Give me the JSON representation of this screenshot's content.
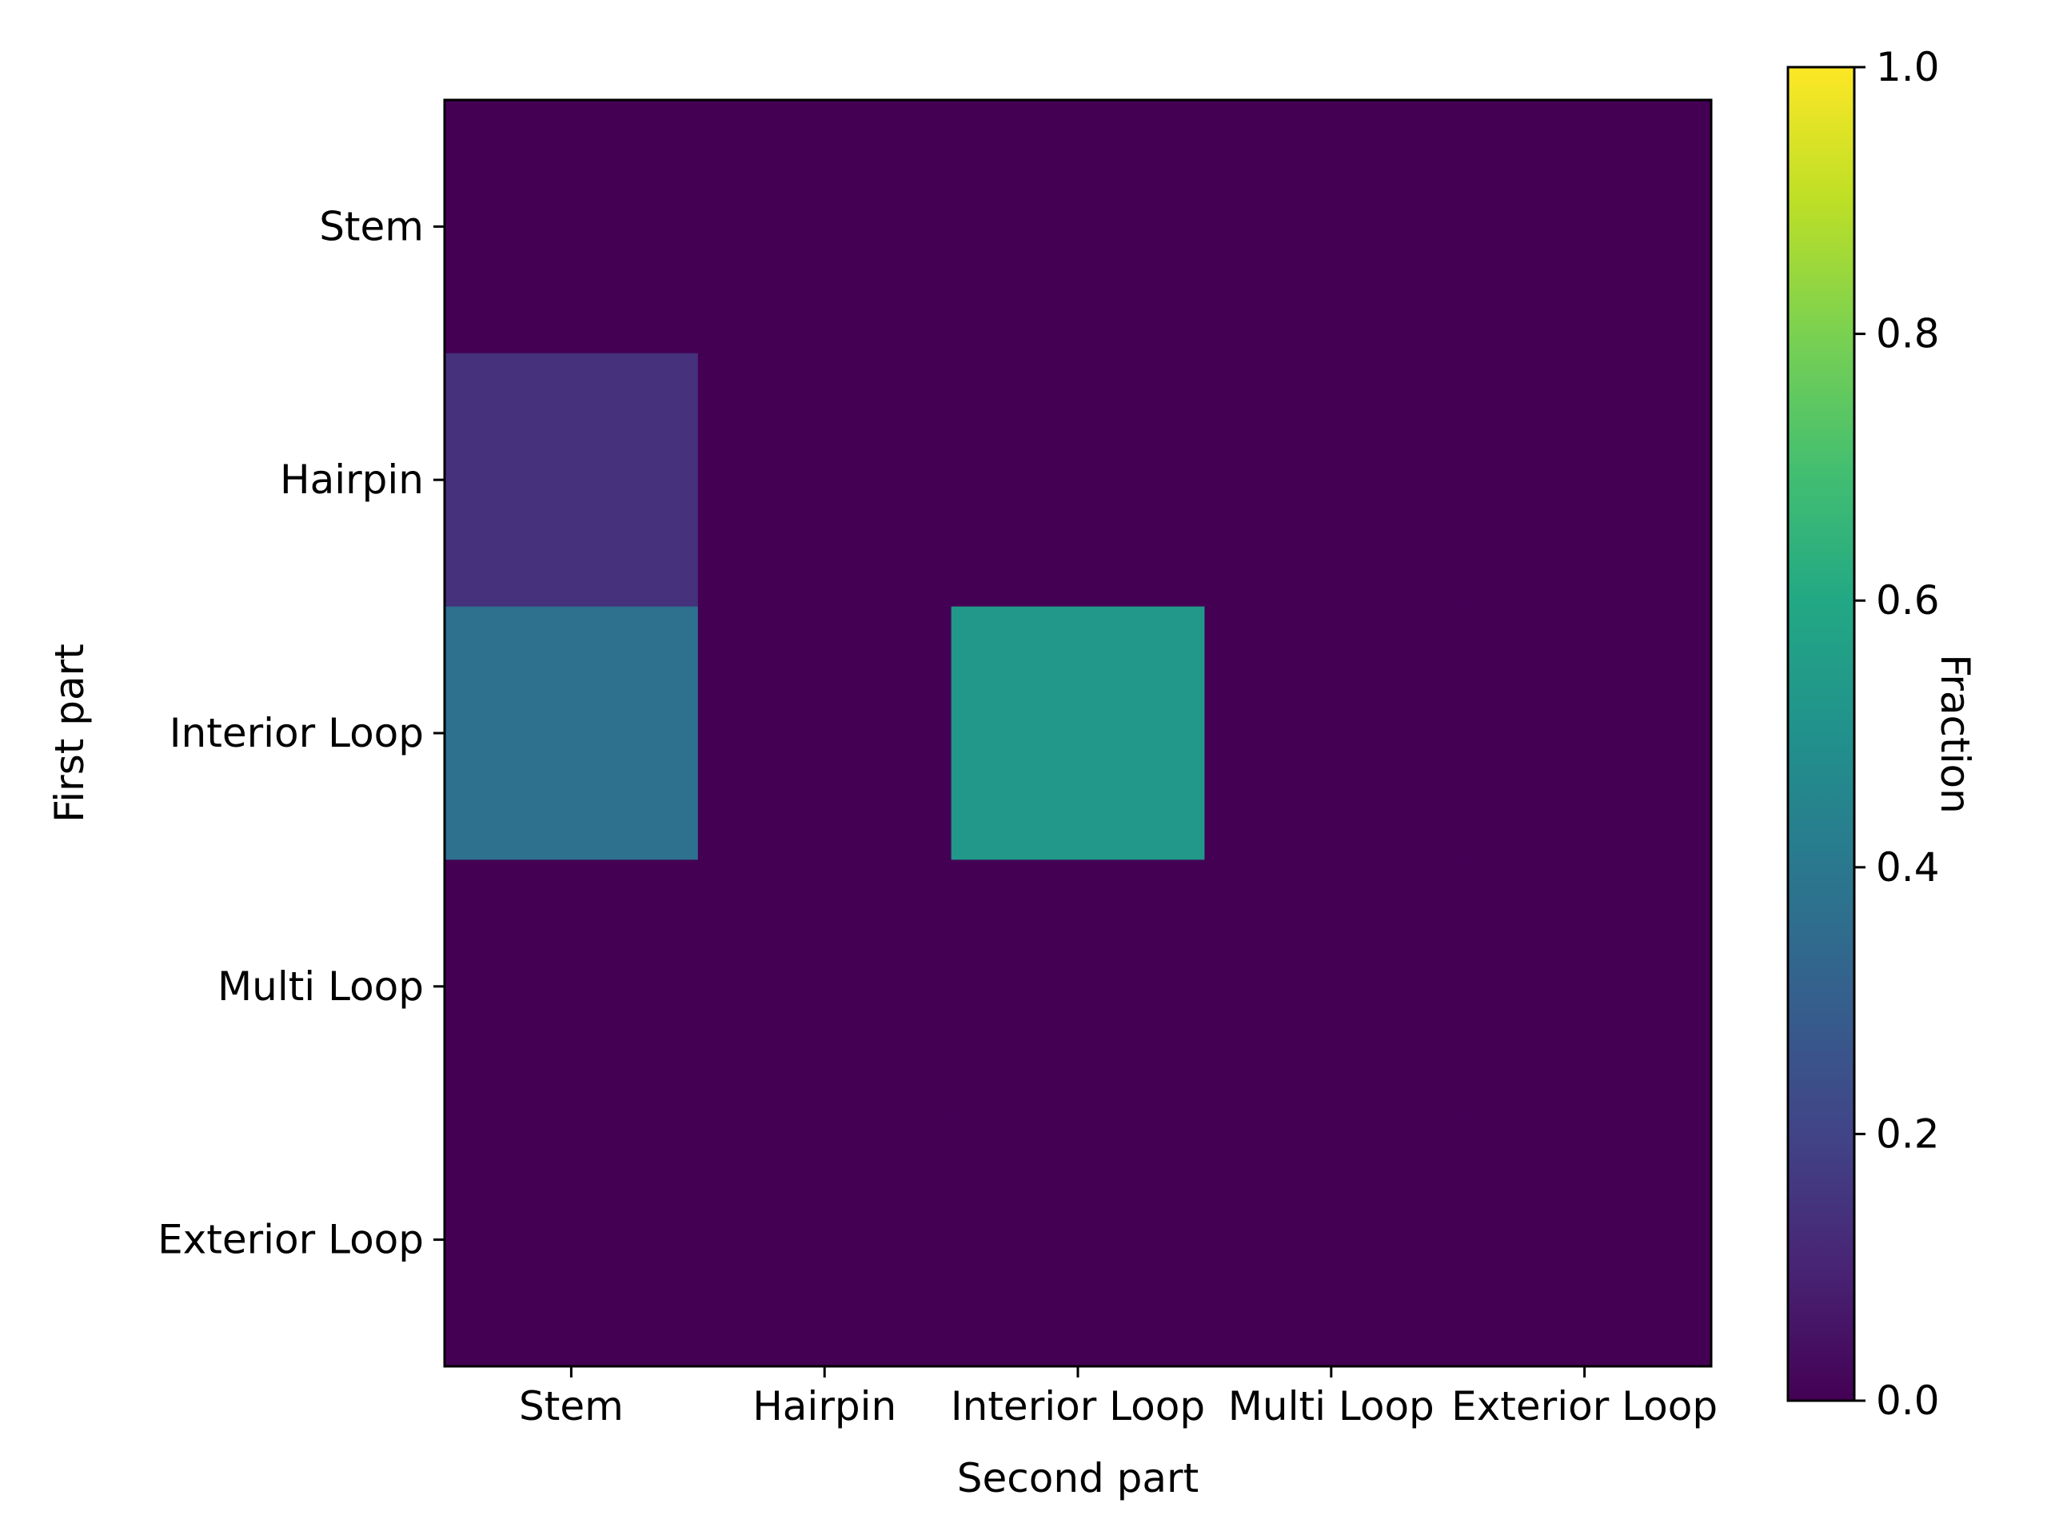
{
  "chart_data": {
    "type": "heatmap",
    "x_categories": [
      "Stem",
      "Hairpin",
      "Interior Loop",
      "Multi Loop",
      "Exterior Loop"
    ],
    "y_categories": [
      "Stem",
      "Hairpin",
      "Interior Loop",
      "Multi Loop",
      "Exterior Loop"
    ],
    "values": [
      [
        0,
        0,
        0,
        0,
        0
      ],
      [
        0.14,
        0,
        0,
        0,
        0
      ],
      [
        0.37,
        0,
        0.53,
        0,
        0
      ],
      [
        0,
        0,
        0,
        0,
        0
      ],
      [
        0,
        0,
        0,
        0,
        0
      ]
    ],
    "xlabel": "Second part",
    "ylabel": "First part",
    "colormap": "viridis",
    "colorbar": {
      "label": "Fraction",
      "range": [
        0.0,
        1.0
      ],
      "ticks": [
        0.0,
        0.2,
        0.4,
        0.6,
        0.8,
        1.0
      ],
      "tick_labels": [
        "0.0",
        "0.2",
        "0.4",
        "0.6",
        "0.8",
        "1.0"
      ]
    },
    "grid": false
  }
}
